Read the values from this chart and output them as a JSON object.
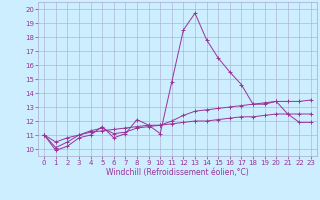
{
  "xlabel": "Windchill (Refroidissement éolien,°C)",
  "x_values": [
    0,
    1,
    2,
    3,
    4,
    5,
    6,
    7,
    8,
    9,
    10,
    11,
    12,
    13,
    14,
    15,
    16,
    17,
    18,
    19,
    20,
    21,
    22,
    23
  ],
  "line1": [
    11.0,
    9.9,
    10.2,
    10.8,
    11.0,
    11.6,
    10.8,
    11.1,
    12.1,
    11.7,
    11.1,
    14.8,
    18.5,
    19.7,
    17.8,
    16.5,
    15.5,
    14.6,
    13.2,
    13.2,
    13.4,
    12.5,
    11.9,
    11.9
  ],
  "line2": [
    11.0,
    10.1,
    10.5,
    11.0,
    11.3,
    11.5,
    11.1,
    11.2,
    11.5,
    11.6,
    11.7,
    12.0,
    12.4,
    12.7,
    12.8,
    12.9,
    13.0,
    13.1,
    13.2,
    13.3,
    13.4,
    13.4,
    13.4,
    13.5
  ],
  "line3": [
    11.0,
    10.5,
    10.8,
    11.0,
    11.2,
    11.3,
    11.4,
    11.5,
    11.6,
    11.7,
    11.7,
    11.8,
    11.9,
    12.0,
    12.0,
    12.1,
    12.2,
    12.3,
    12.3,
    12.4,
    12.5,
    12.5,
    12.5,
    12.5
  ],
  "line_color": "#993399",
  "bg_color": "#cceeff",
  "grid_color": "#aaaacc",
  "ylim": [
    9.5,
    20.5
  ],
  "yticks": [
    10,
    11,
    12,
    13,
    14,
    15,
    16,
    17,
    18,
    19,
    20
  ],
  "xlim": [
    -0.5,
    23.5
  ],
  "tick_fontsize": 5.0,
  "xlabel_fontsize": 5.5,
  "linewidth": 0.7,
  "markersize": 3.0
}
